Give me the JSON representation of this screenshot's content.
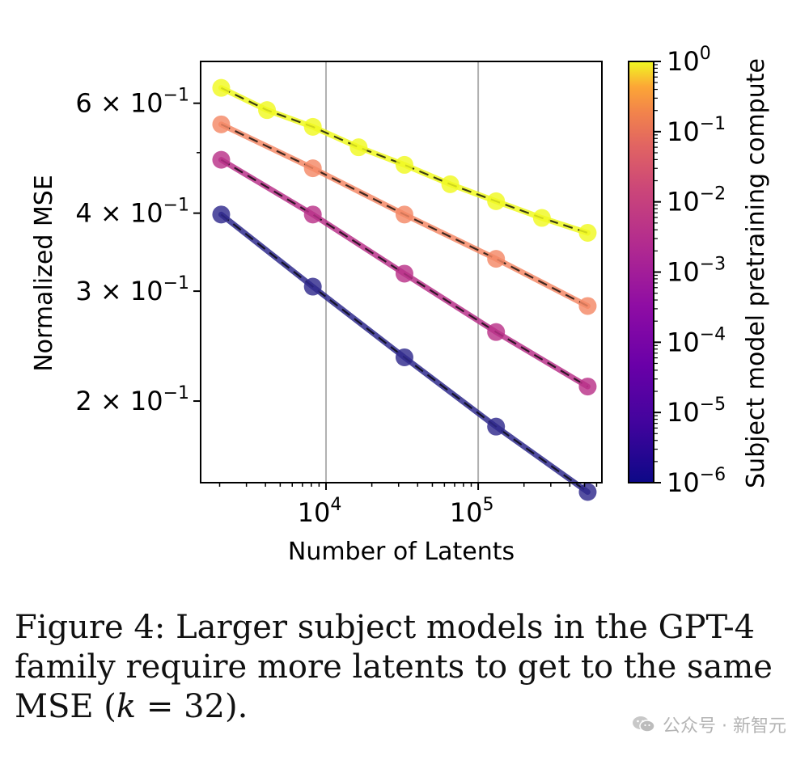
{
  "chart_data": {
    "type": "line",
    "x_scale": "log",
    "y_scale": "log",
    "xlabel": "Number of Latents",
    "ylabel": "Normalized MSE",
    "xlim": [
      1500,
      650000
    ],
    "ylim": [
      0.148,
      0.7
    ],
    "x_ticks": [
      {
        "value": 10000,
        "base": "10",
        "exp": "4"
      },
      {
        "value": 100000,
        "base": "10",
        "exp": "5"
      }
    ],
    "y_ticks": [
      {
        "value": 0.6,
        "mant": "6",
        "times": "×",
        "base": "10",
        "exp": "−1"
      },
      {
        "value": 0.4,
        "mant": "4",
        "times": "×",
        "base": "10",
        "exp": "−1"
      },
      {
        "value": 0.3,
        "mant": "3",
        "times": "×",
        "base": "10",
        "exp": "−1"
      },
      {
        "value": 0.2,
        "mant": "2",
        "times": "×",
        "base": "10",
        "exp": "−1"
      }
    ],
    "grid": "vertical major lines",
    "series": [
      {
        "name": "compute 1e0",
        "color": "#f0f921",
        "x": [
          2048,
          4096,
          8192,
          16384,
          32768,
          65536,
          131072,
          262144,
          524288
        ],
        "y": [
          0.635,
          0.585,
          0.55,
          0.51,
          0.478,
          0.445,
          0.418,
          0.393,
          0.372
        ]
      },
      {
        "name": "compute 1e-2",
        "color": "#f48967",
        "x": [
          2048,
          8192,
          32768,
          131072,
          524288
        ],
        "y": [
          0.555,
          0.472,
          0.398,
          0.338,
          0.284
        ]
      },
      {
        "name": "compute 1e-4",
        "color": "#b93289",
        "x": [
          2048,
          8192,
          32768,
          131072,
          524288
        ],
        "y": [
          0.487,
          0.398,
          0.32,
          0.258,
          0.211
        ]
      },
      {
        "name": "compute 1e-6",
        "color": "#2f2a8c",
        "x": [
          2048,
          8192,
          32768,
          131072,
          524288
        ],
        "y": [
          0.398,
          0.305,
          0.235,
          0.182,
          0.143
        ]
      }
    ],
    "colorbar": {
      "label": "Subject model pretraining compute",
      "colormap": "plasma",
      "ticks": [
        {
          "base": "10",
          "exp": "0"
        },
        {
          "base": "10",
          "exp": "−1"
        },
        {
          "base": "10",
          "exp": "−2"
        },
        {
          "base": "10",
          "exp": "−3"
        },
        {
          "base": "10",
          "exp": "−4"
        },
        {
          "base": "10",
          "exp": "−5"
        },
        {
          "base": "10",
          "exp": "−6"
        }
      ]
    }
  },
  "caption": {
    "prefix": "Figure 4: Larger subject models in the GPT-4 family require more latents to get to the same MSE (",
    "var": "k",
    "eq": " = 32",
    "suffix": ")."
  },
  "watermark": {
    "text": "公众号 · 新智元"
  }
}
